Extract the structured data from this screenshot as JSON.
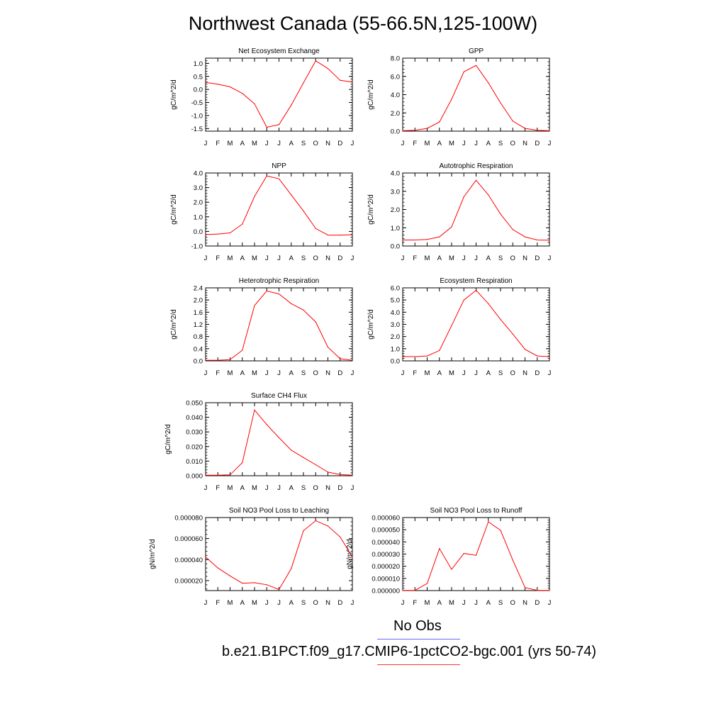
{
  "page_title": "Northwest Canada (55-66.5N,125-100W)",
  "legend": {
    "line1": "No Obs",
    "line1_color": "#6666ff",
    "line2": "b.e21.B1PCT.f09_g17.CMIP6-1pctCO2-bgc.001 (yrs 50-74)",
    "line2_color": "#ff3333"
  },
  "line_color": "#ff0000",
  "chart_data": [
    {
      "type": "line",
      "title": "Net Ecosystem Exchange",
      "ylabel": "gC/m^2/d",
      "categories": [
        "J",
        "F",
        "M",
        "A",
        "M",
        "J",
        "J",
        "A",
        "S",
        "O",
        "N",
        "D",
        "J"
      ],
      "ylim": [
        -1.6,
        1.2
      ],
      "yticks": [
        -1.5,
        -1.0,
        -0.5,
        0.0,
        0.5,
        1.0
      ],
      "ytick_labels": [
        "-1.5",
        "-1.0",
        "-0.5",
        "0.0",
        "0.5",
        "1.0"
      ],
      "values": [
        0.27,
        0.2,
        0.1,
        -0.15,
        -0.55,
        -1.45,
        -1.35,
        -0.6,
        0.25,
        1.1,
        0.8,
        0.35,
        0.28
      ]
    },
    {
      "type": "line",
      "title": "GPP",
      "ylabel": "gC/m^2/d",
      "categories": [
        "J",
        "F",
        "M",
        "A",
        "M",
        "J",
        "J",
        "A",
        "S",
        "O",
        "N",
        "D",
        "J"
      ],
      "ylim": [
        0.0,
        8.0
      ],
      "yticks": [
        0,
        2,
        4,
        6,
        8
      ],
      "ytick_labels": [
        "0.0",
        "2.0",
        "4.0",
        "6.0",
        "8.0"
      ],
      "values": [
        0.05,
        0.1,
        0.3,
        1.0,
        3.5,
        6.5,
        7.2,
        5.3,
        3.1,
        1.1,
        0.3,
        0.1,
        0.05
      ]
    },
    {
      "type": "line",
      "title": "NPP",
      "ylabel": "gC/m^2/d",
      "categories": [
        "J",
        "F",
        "M",
        "A",
        "M",
        "J",
        "J",
        "A",
        "S",
        "O",
        "N",
        "D",
        "J"
      ],
      "ylim": [
        -1.0,
        4.0
      ],
      "yticks": [
        -1,
        0,
        1,
        2,
        3,
        4
      ],
      "ytick_labels": [
        "-1.0",
        "0.0",
        "1.0",
        "2.0",
        "3.0",
        "4.0"
      ],
      "values": [
        -0.22,
        -0.18,
        -0.1,
        0.5,
        2.4,
        3.8,
        3.6,
        2.5,
        1.4,
        0.2,
        -0.25,
        -0.25,
        -0.23
      ]
    },
    {
      "type": "line",
      "title": "Autotrophic Respiration",
      "ylabel": "gC/m^2/d",
      "categories": [
        "J",
        "F",
        "M",
        "A",
        "M",
        "J",
        "J",
        "A",
        "S",
        "O",
        "N",
        "D",
        "J"
      ],
      "ylim": [
        0.0,
        4.0
      ],
      "yticks": [
        0,
        1,
        2,
        3,
        4
      ],
      "ytick_labels": [
        "0.0",
        "1.0",
        "2.0",
        "3.0",
        "4.0"
      ],
      "values": [
        0.33,
        0.33,
        0.36,
        0.5,
        1.05,
        2.7,
        3.6,
        2.8,
        1.75,
        0.9,
        0.5,
        0.33,
        0.32
      ]
    },
    {
      "type": "line",
      "title": "Heterotrophic Respiration",
      "ylabel": "gC/m^2/d",
      "categories": [
        "J",
        "F",
        "M",
        "A",
        "M",
        "J",
        "J",
        "A",
        "S",
        "O",
        "N",
        "D",
        "J"
      ],
      "ylim": [
        0.0,
        2.4
      ],
      "yticks": [
        0,
        0.4,
        0.8,
        1.2,
        1.6,
        2.0,
        2.4
      ],
      "ytick_labels": [
        "0.0",
        "0.4",
        "0.8",
        "1.2",
        "1.6",
        "2.0",
        "2.4"
      ],
      "values": [
        0.02,
        0.02,
        0.04,
        0.35,
        1.82,
        2.3,
        2.2,
        1.88,
        1.67,
        1.28,
        0.45,
        0.07,
        0.02
      ]
    },
    {
      "type": "line",
      "title": "Ecosystem Respiration",
      "ylabel": "gC/m^2/d",
      "categories": [
        "J",
        "F",
        "M",
        "A",
        "M",
        "J",
        "J",
        "A",
        "S",
        "O",
        "N",
        "D",
        "J"
      ],
      "ylim": [
        0.0,
        6.0
      ],
      "yticks": [
        0,
        1,
        2,
        3,
        4,
        5,
        6
      ],
      "ytick_labels": [
        "0.0",
        "1.0",
        "2.0",
        "3.0",
        "4.0",
        "5.0",
        "6.0"
      ],
      "values": [
        0.35,
        0.35,
        0.4,
        0.85,
        2.9,
        5.0,
        5.8,
        4.7,
        3.4,
        2.2,
        0.95,
        0.4,
        0.35
      ]
    },
    {
      "type": "line",
      "title": "Surface CH4 Flux",
      "ylabel": "gC/m^2/d",
      "categories": [
        "J",
        "F",
        "M",
        "A",
        "M",
        "J",
        "J",
        "A",
        "S",
        "O",
        "N",
        "D",
        "J"
      ],
      "ylim": [
        0.0,
        0.05
      ],
      "yticks": [
        0,
        0.01,
        0.02,
        0.03,
        0.04,
        0.05
      ],
      "ytick_labels": [
        "0.000",
        "0.010",
        "0.020",
        "0.030",
        "0.040",
        "0.050"
      ],
      "values": [
        0.0004,
        0.0004,
        0.0006,
        0.009,
        0.045,
        0.035,
        0.026,
        0.0175,
        0.0125,
        0.0075,
        0.0025,
        0.0008,
        0.0004
      ]
    },
    {
      "type": "line",
      "title": "Soil NO3 Pool Loss to Leaching",
      "ylabel": "gN/m^2/d",
      "categories": [
        "J",
        "F",
        "M",
        "A",
        "M",
        "J",
        "J",
        "A",
        "S",
        "O",
        "N",
        "D",
        "J"
      ],
      "ylim": [
        1.05e-05,
        8e-05
      ],
      "yticks": [
        2e-05,
        4e-05,
        6e-05,
        8e-05
      ],
      "ytick_labels": [
        "0.000020",
        "0.000040",
        "0.000060",
        "0.000080"
      ],
      "values": [
        4.25e-05,
        3.2e-05,
        2.45e-05,
        1.75e-05,
        1.8e-05,
        1.6e-05,
        1.15e-05,
        3.15e-05,
        6.75e-05,
        7.7e-05,
        7.2e-05,
        6.15e-05,
        4.25e-05
      ]
    },
    {
      "type": "line",
      "title": "Soil NO3 Pool Loss to Runoff",
      "ylabel": "gN/m^2/d",
      "categories": [
        "J",
        "F",
        "M",
        "A",
        "M",
        "J",
        "J",
        "A",
        "S",
        "O",
        "N",
        "D",
        "J"
      ],
      "ylim": [
        0.0,
        6e-05
      ],
      "yticks": [
        0,
        1e-05,
        2e-05,
        3e-05,
        4e-05,
        5e-05,
        6e-05
      ],
      "ytick_labels": [
        "0.000000",
        "0.000010",
        "0.000020",
        "0.000030",
        "0.000040",
        "0.000050",
        "0.000060"
      ],
      "values": [
        1e-07,
        2e-07,
        5.8e-06,
        3.45e-05,
        1.75e-05,
        3.05e-05,
        2.9e-05,
        5.65e-05,
        4.95e-05,
        2.5e-05,
        2.5e-06,
        2e-07,
        2e-07
      ]
    }
  ]
}
